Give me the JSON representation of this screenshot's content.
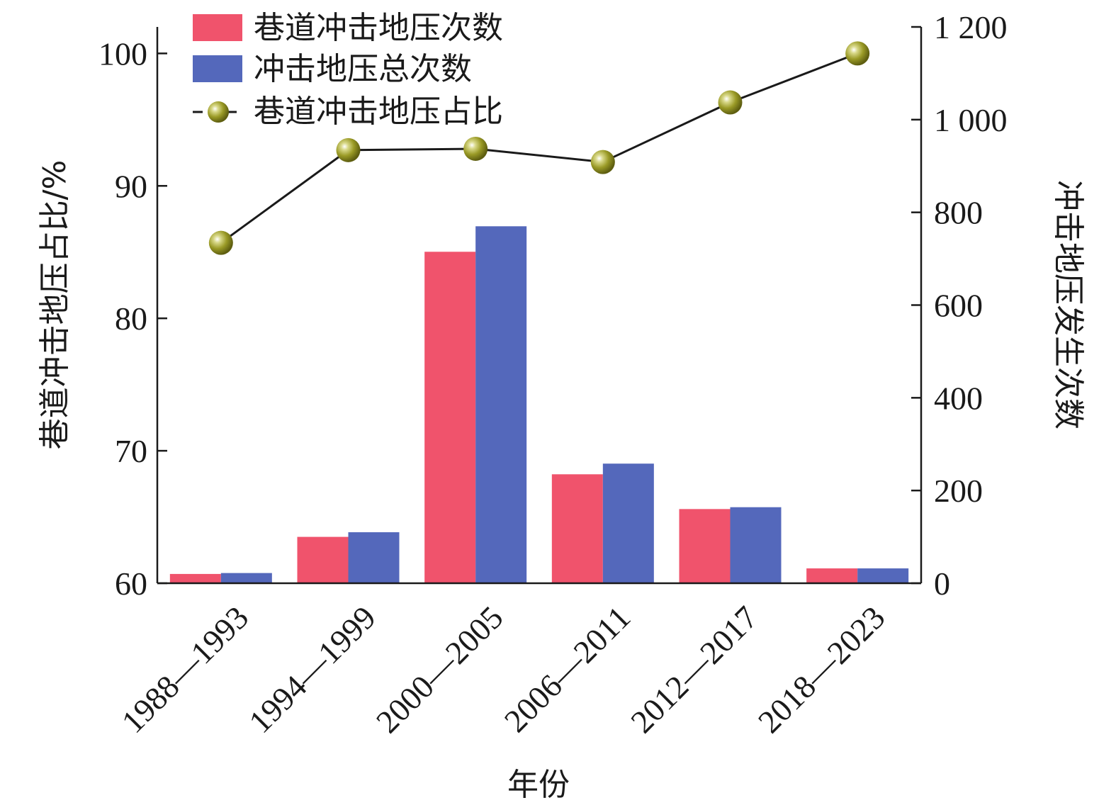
{
  "chart_data": {
    "type": "bar",
    "categories": [
      "1988—1993",
      "1994—1999",
      "2000—2005",
      "2006—2011",
      "2012—2017",
      "2018—2023"
    ],
    "xlabel": "年份",
    "ylabel_left": "巷道冲击地压占比/%",
    "ylabel_right": "冲击地压发生次数",
    "y_left": {
      "lim": [
        60,
        102
      ],
      "ticks": [
        60,
        70,
        80,
        90,
        100
      ],
      "tick_labels": [
        "60",
        "70",
        "80",
        "90",
        "100"
      ]
    },
    "y_right": {
      "lim": [
        0,
        1200
      ],
      "ticks": [
        0,
        200,
        400,
        600,
        800,
        1000,
        1200
      ],
      "tick_labels": [
        "0",
        "200",
        "400",
        "600",
        "800",
        "1 000",
        "1 200"
      ]
    },
    "series": [
      {
        "name": "巷道冲击地压次数",
        "type": "bar",
        "axis": "right",
        "color": "#f0536c",
        "values": [
          20,
          100,
          715,
          235,
          160,
          32
        ]
      },
      {
        "name": "冲击地压总次数",
        "type": "bar",
        "axis": "right",
        "color": "#5468bb",
        "values": [
          22,
          110,
          770,
          258,
          164,
          32
        ]
      },
      {
        "name": "巷道冲击地压占比",
        "type": "line",
        "axis": "left",
        "color": "#9a9a26",
        "line_color": "#1a1a1a",
        "values": [
          85.7,
          92.7,
          92.8,
          91.8,
          96.3,
          100
        ]
      }
    ],
    "legend_position": "top-left",
    "grid": false
  }
}
